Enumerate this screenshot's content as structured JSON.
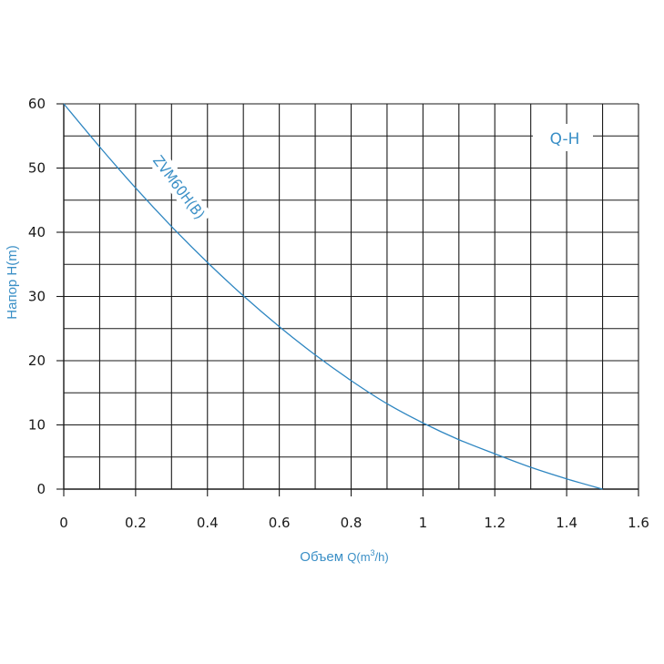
{
  "chart_data": {
    "type": "line",
    "ylabel": "Напор H(m)",
    "xlabel_main": "Объем",
    "xlabel_unit": "Q(m",
    "xlabel_sup": "3",
    "xlabel_end": "/h)",
    "xlim": [
      0,
      1.6
    ],
    "ylim": [
      0,
      60
    ],
    "x_ticks": [
      0,
      0.2,
      0.4,
      0.6,
      0.8,
      1,
      1.2,
      1.4,
      1.6
    ],
    "x_tick_labels": [
      "0",
      "0.2",
      "0.4",
      "0.6",
      "0.8",
      "1",
      "1.2",
      "1.4",
      "1.6"
    ],
    "y_ticks": [
      0,
      10,
      20,
      30,
      40,
      50,
      60
    ],
    "y_tick_labels": [
      "0",
      "10",
      "20",
      "30",
      "40",
      "50",
      "60"
    ],
    "grid": true,
    "legend_label": "Q-H",
    "legend_position": "top-right",
    "series": [
      {
        "name": "ZVM60H(B)",
        "x": [
          0,
          0.1,
          0.2,
          0.3,
          0.4,
          0.5,
          0.6,
          0.7,
          0.8,
          0.9,
          1.0,
          1.1,
          1.2,
          1.3,
          1.4,
          1.5
        ],
        "y": [
          60,
          53.3,
          46.9,
          40.9,
          35.3,
          30.1,
          25.3,
          20.9,
          16.9,
          13.3,
          10.3,
          7.7,
          5.5,
          3.4,
          1.6,
          0
        ]
      }
    ]
  },
  "colors": {
    "grid": "#1a1a1a",
    "curve": "#2e86c1",
    "labels": "#3a8fc6",
    "ticks": "#1a1a1a"
  }
}
